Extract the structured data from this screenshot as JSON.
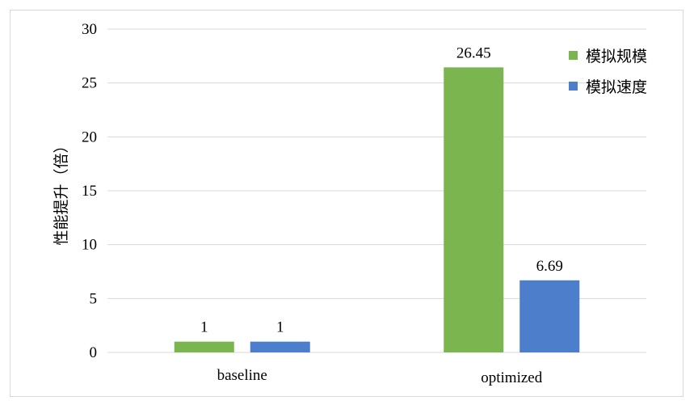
{
  "chart_data": {
    "type": "bar",
    "categories": [
      "baseline",
      "optimized"
    ],
    "series": [
      {
        "name": "模拟规模",
        "values": [
          1,
          26.45
        ],
        "labels": [
          "1",
          "26.45"
        ],
        "color": "#7bb550"
      },
      {
        "name": "模拟速度",
        "values": [
          1,
          6.69
        ],
        "labels": [
          "1",
          "6.69"
        ],
        "color": "#4d7ecb"
      }
    ],
    "title": "",
    "xlabel": "",
    "ylabel": "性能提升（倍）",
    "ylim": [
      0,
      30
    ],
    "yticks": [
      0,
      5,
      10,
      15,
      20,
      25,
      30
    ],
    "grid": true,
    "legend_position": "top-right"
  }
}
